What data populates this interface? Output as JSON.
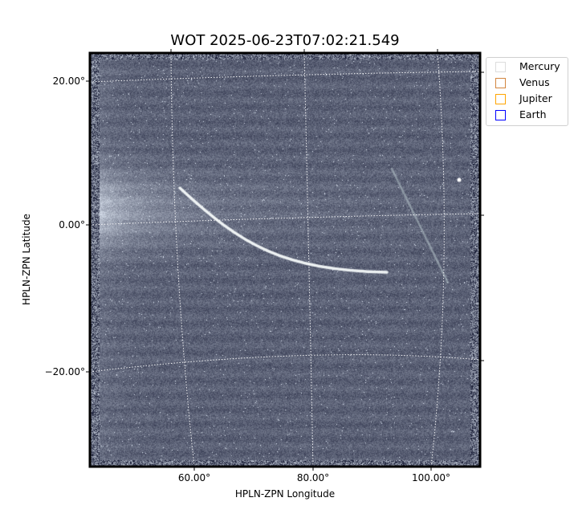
{
  "chart_data": {
    "type": "heatmap",
    "title": "WOT 2025-06-23T07:02:21.549",
    "xlabel": "HPLN-ZPN Longitude",
    "ylabel": "HPLN-ZPN Latitude",
    "x_ticks": [
      "60.00°",
      "80.00°",
      "100.00°"
    ],
    "y_ticks": [
      "20.00°",
      "0.00°",
      "−20.00°"
    ],
    "grid": true,
    "colormap": "bone",
    "legend": {
      "placement": "outside-top-right",
      "entries": [
        {
          "name": "Mercury",
          "color": "#dddddd"
        },
        {
          "name": "Venus",
          "color": "#d2853f"
        },
        {
          "name": "Jupiter",
          "color": "#ffa500"
        },
        {
          "name": "Earth",
          "color": "#0000ff"
        }
      ]
    }
  }
}
